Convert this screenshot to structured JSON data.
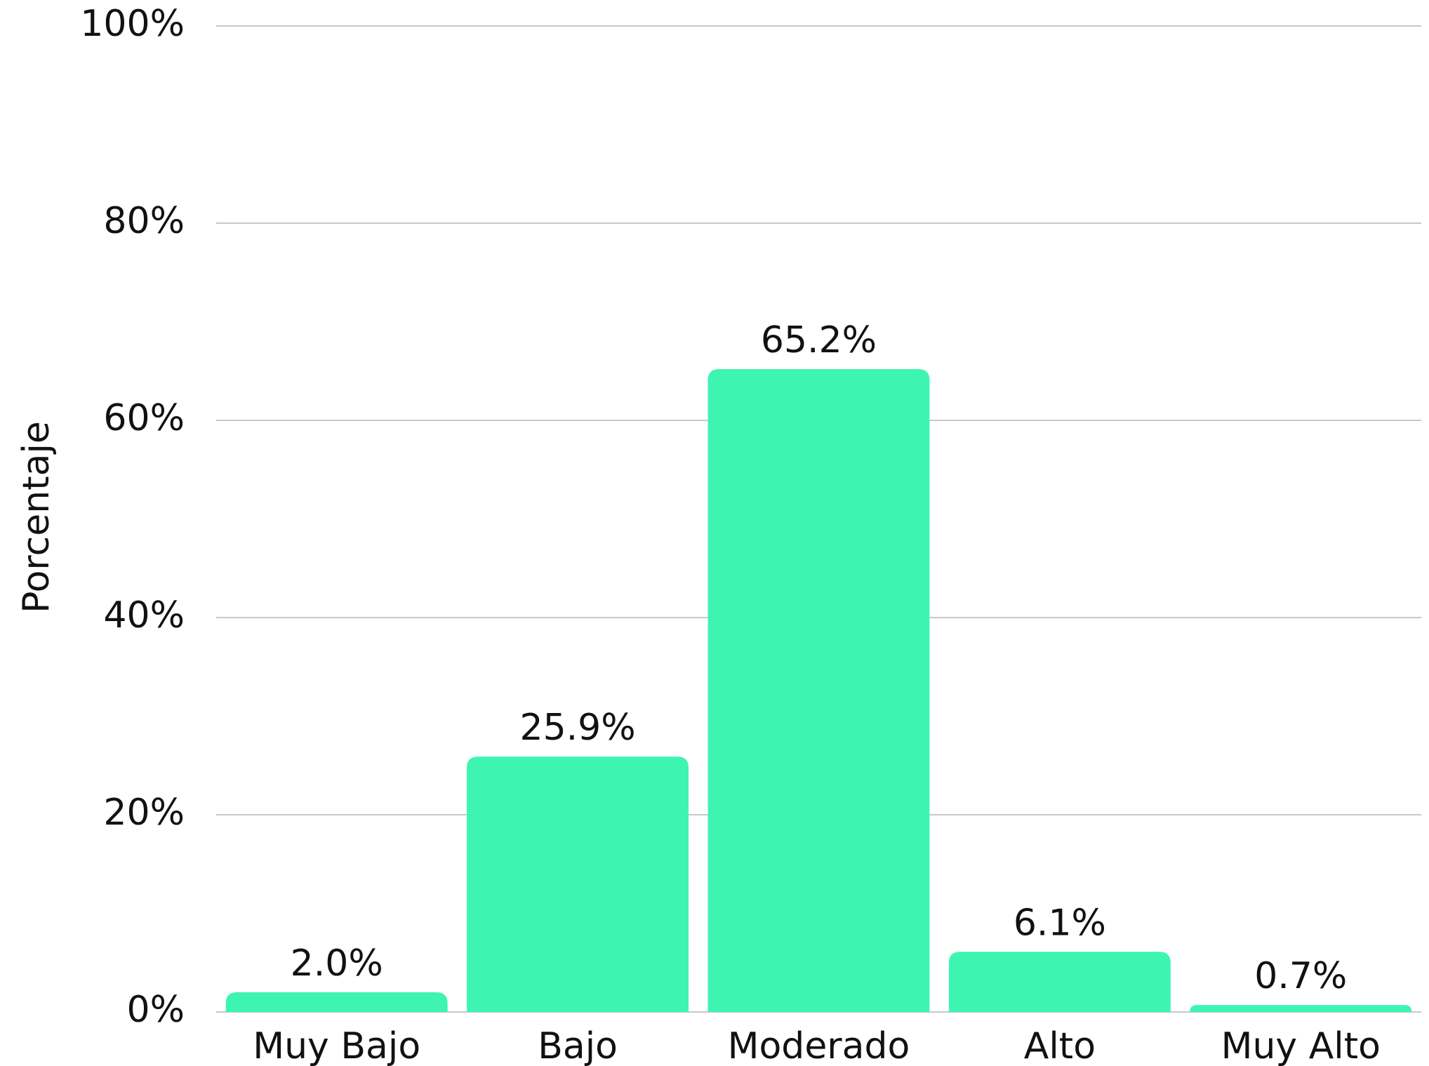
{
  "chart_data": {
    "type": "bar",
    "y_label": "Porcentaje",
    "categories": [
      "Muy Bajo",
      "Bajo",
      "Moderado",
      "Alto",
      "Muy Alto"
    ],
    "values": [
      2.0,
      25.9,
      65.2,
      6.1,
      0.7
    ],
    "value_labels": [
      "2.0%",
      "25.9%",
      "65.2%",
      "6.1%",
      "0.7%"
    ],
    "color": "#3df5b1",
    "ylim": [
      0,
      100
    ],
    "yticks": [
      {
        "value": 0,
        "label": "0%"
      },
      {
        "value": 20,
        "label": "20%"
      },
      {
        "value": 40,
        "label": "40%"
      },
      {
        "value": 60,
        "label": "60%"
      },
      {
        "value": 80,
        "label": "80%"
      },
      {
        "value": 100,
        "label": "100%"
      }
    ],
    "grid": true
  }
}
